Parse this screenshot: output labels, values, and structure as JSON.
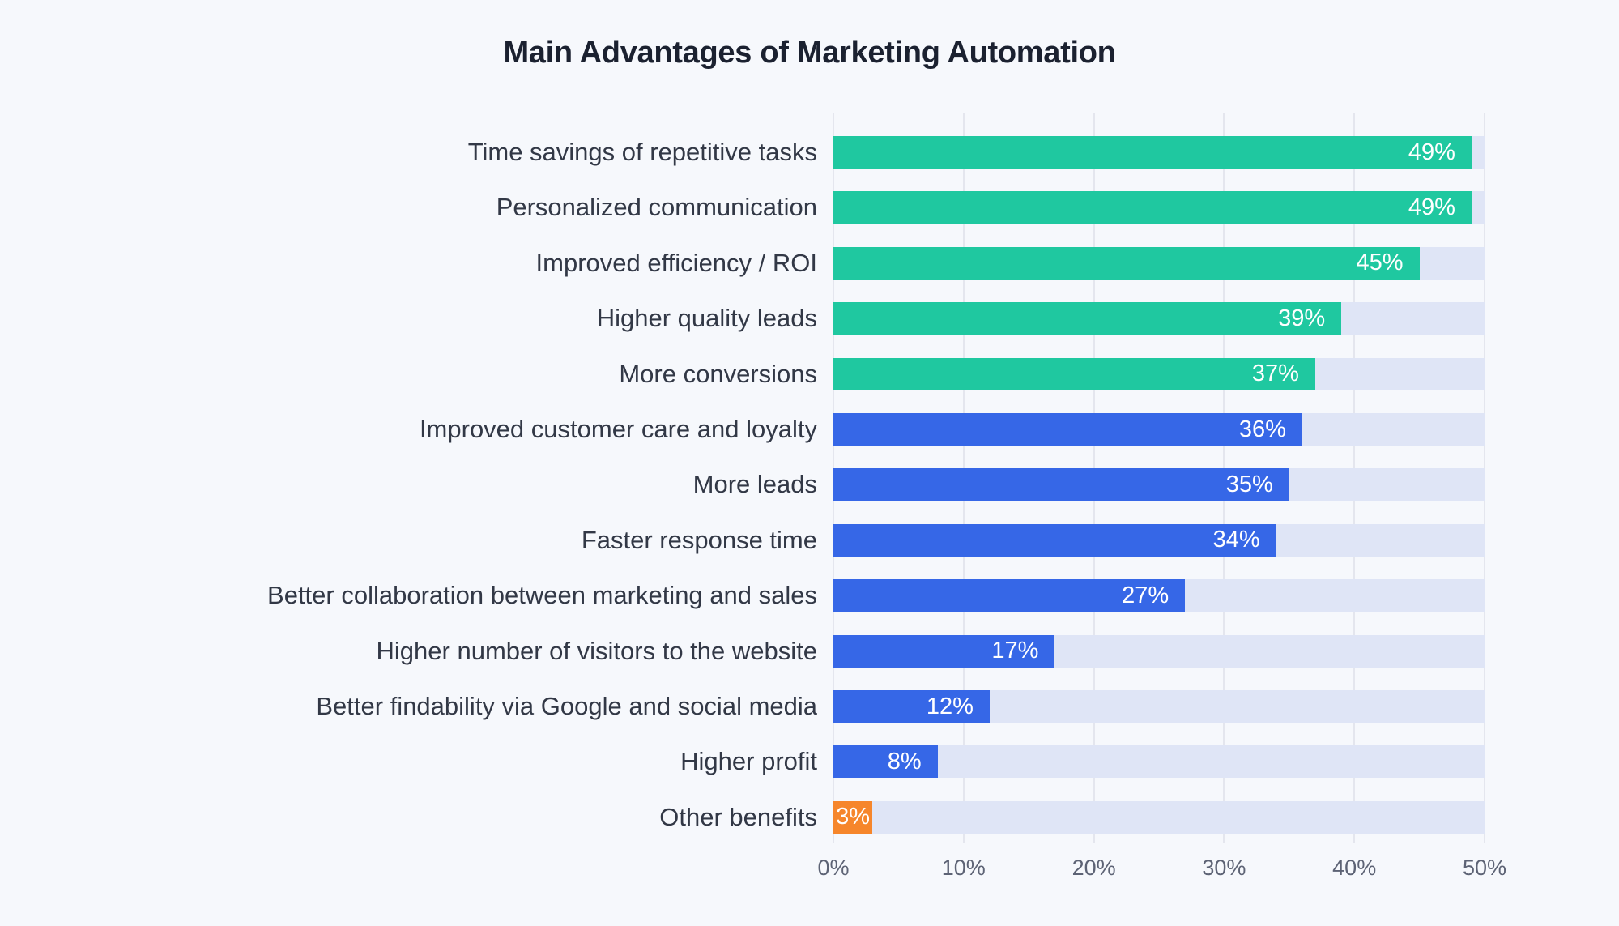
{
  "page": {
    "background_color": "#f6f8fc"
  },
  "chart_data": {
    "type": "bar",
    "orientation": "horizontal",
    "title": "Main Advantages of Marketing Automation",
    "categories": [
      "Time savings of repetitive tasks",
      "Personalized communication",
      "Improved efficiency / ROI",
      "Higher quality leads",
      "More conversions",
      "Improved customer care and loyalty",
      "More leads",
      "Faster response time",
      "Better collaboration between marketing and sales",
      "Higher number of visitors to the website",
      "Better findability via Google and social media",
      "Higher profit",
      "Other benefits"
    ],
    "values": [
      49,
      49,
      45,
      39,
      37,
      36,
      35,
      34,
      27,
      17,
      12,
      8,
      3
    ],
    "value_labels": [
      "49%",
      "49%",
      "45%",
      "39%",
      "37%",
      "36%",
      "35%",
      "34%",
      "27%",
      "17%",
      "12%",
      "8%",
      "3%"
    ],
    "bar_colors": [
      "#1fc8a0",
      "#1fc8a0",
      "#1fc8a0",
      "#1fc8a0",
      "#1fc8a0",
      "#3667e7",
      "#3667e7",
      "#3667e7",
      "#3667e7",
      "#3667e7",
      "#3667e7",
      "#3667e7",
      "#f6862b"
    ],
    "xlabel": "",
    "ylabel": "",
    "xlim": [
      0,
      50
    ],
    "x_ticks": [
      "0%",
      "10%",
      "20%",
      "30%",
      "40%",
      "50%"
    ],
    "x_tick_values": [
      0,
      10,
      20,
      30,
      40,
      50
    ],
    "grid": "vertical",
    "legend": "none",
    "value_label_position": "inside-end",
    "colors": {
      "green_bar": "#1fc8a0",
      "blue_bar": "#3667e7",
      "orange_bar": "#f6862b",
      "bar_track": "#dfe5f6",
      "gridline": "#e4e6ee",
      "title_text": "#1b2130",
      "category_text": "#323846",
      "axis_text": "#5d6375",
      "value_text": "#ffffff",
      "background": "#f6f8fc"
    }
  }
}
